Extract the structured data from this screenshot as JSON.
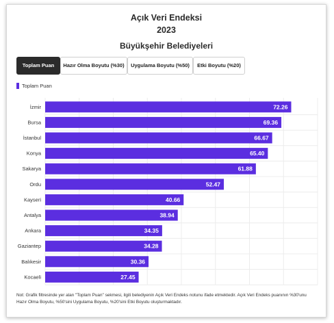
{
  "header": {
    "title_line1": "Açık Veri Endeksi",
    "title_line2": "2023",
    "title_line3": "Büyükşehir Belediyeleri"
  },
  "tabs": [
    {
      "label": "Toplam Puan",
      "active": true
    },
    {
      "label": "Hazır Olma Boyutu (%30)",
      "active": false
    },
    {
      "label": "Uygulama Boyutu (%50)",
      "active": false
    },
    {
      "label": "Etki Boyutu (%20)",
      "active": false
    }
  ],
  "legend": {
    "label": "Toplam Puan"
  },
  "colors": {
    "bar": "#5b2ee0",
    "grid": "#ececec",
    "active_tab": "#2b2b2b"
  },
  "chart_data": {
    "type": "bar",
    "orientation": "horizontal",
    "categories": [
      "İzmir",
      "Bursa",
      "İstanbul",
      "Konya",
      "Sakarya",
      "Ordu",
      "Kayseri",
      "Antalya",
      "Ankara",
      "Gaziantep",
      "Balıkesir",
      "Kocaeli"
    ],
    "series": [
      {
        "name": "Toplam Puan",
        "values": [
          72.26,
          69.36,
          66.67,
          65.4,
          61.88,
          52.47,
          40.66,
          38.94,
          34.35,
          34.28,
          30.36,
          27.45
        ]
      }
    ],
    "value_labels": [
      "72.26",
      "69.36",
      "66.67",
      "65.40",
      "61.88",
      "52.47",
      "40.66",
      "38.94",
      "34.35",
      "34.28",
      "30.36",
      "27.45"
    ],
    "xlim": [
      0,
      80
    ],
    "grid": true,
    "legend_position": "top-left",
    "data_labels_inside": true
  },
  "note": "Not: Grafik filtresinde yer alan \"Toplam Puan\" sekmesi, ilgili belediyenin Açık Veri Endeks notunu ifade etmektedir. Açık Veri Endeks puanının %30'unu Hazır Olma Boyutu, %50'sini Uygulama Boyutu, %20'sini Etki Boyutu oluşturmaktadır."
}
